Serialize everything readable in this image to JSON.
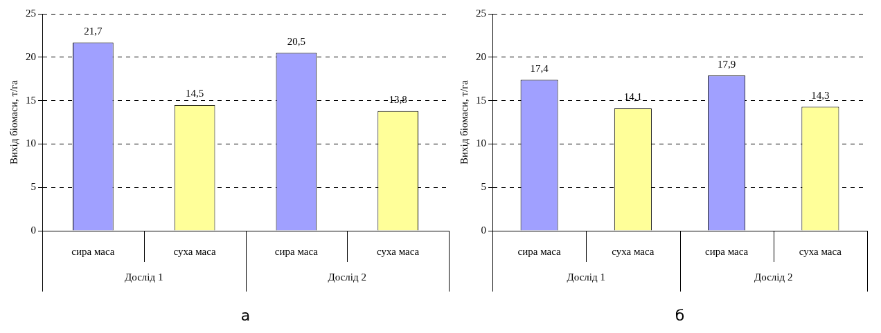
{
  "chart_data": [
    {
      "type": "bar",
      "categories": [
        "сира маса",
        "суха маса",
        "сира маса",
        "суха маса"
      ],
      "values": [
        21.7,
        14.5,
        20.5,
        13.8
      ],
      "value_labels": [
        "21,7",
        "14,5",
        "20,5",
        "13,8"
      ],
      "colors": [
        "#a0a0ff",
        "#ffff99",
        "#a0a0ff",
        "#ffff99"
      ],
      "ylabel": "Вихід біомаси, т/га",
      "xlabel": "а",
      "annotations": [
        "Дослід 1",
        "Дослід 2"
      ],
      "ylim": [
        0,
        25
      ],
      "yticks": [
        0,
        5,
        10,
        15,
        20,
        25
      ],
      "grid": "y",
      "legend": false
    },
    {
      "type": "bar",
      "categories": [
        "сира маса",
        "суха маса",
        "сира маса",
        "суха маса"
      ],
      "values": [
        17.4,
        14.1,
        17.9,
        14.3
      ],
      "value_labels": [
        "17,4",
        "14,1",
        "17,9",
        "14,3"
      ],
      "colors": [
        "#a0a0ff",
        "#ffff99",
        "#a0a0ff",
        "#ffff99"
      ],
      "ylabel": "Вихід біомаси, т/га",
      "xlabel": "б",
      "annotations": [
        "Дослід 1",
        "Дослід 2"
      ],
      "ylim": [
        0,
        25
      ],
      "yticks": [
        0,
        5,
        10,
        15,
        20,
        25
      ],
      "grid": "y",
      "legend": false
    }
  ]
}
